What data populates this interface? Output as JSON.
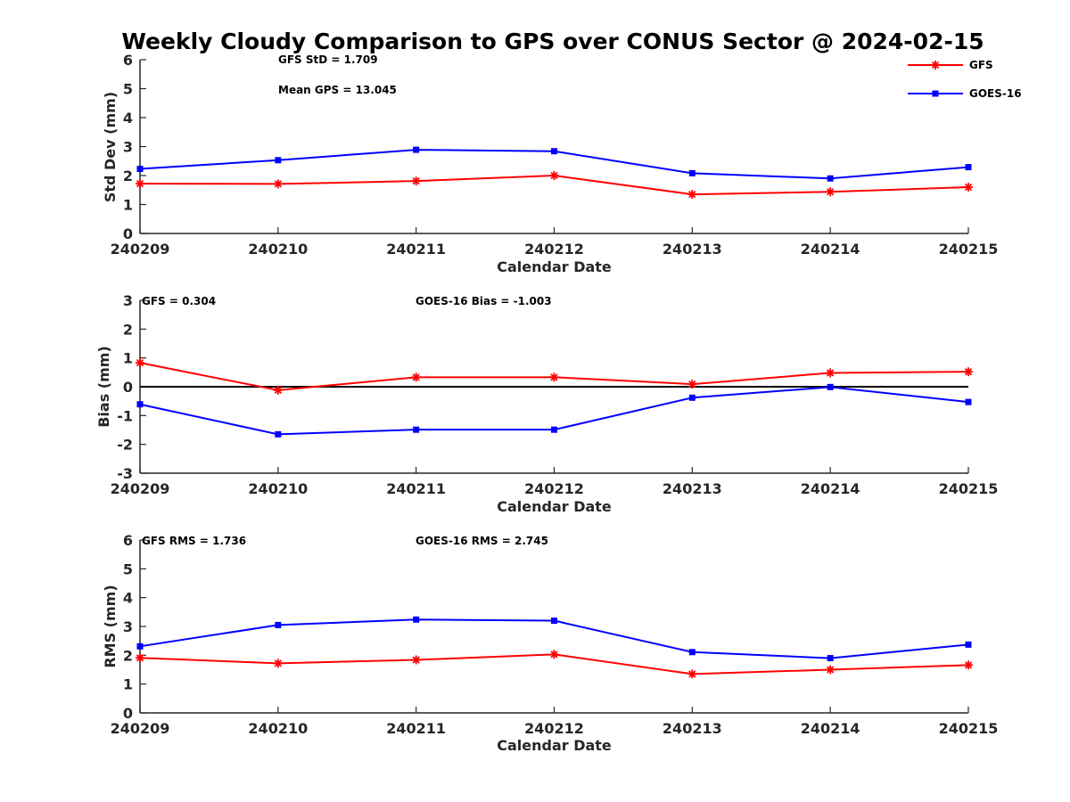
{
  "chart_data": [
    {
      "type": "line",
      "title": "Weekly Cloudy Comparison to GPS over CONUS Sector @ 2024-02-15",
      "xlabel": "Calendar Date",
      "ylabel": "Std Dev (mm)",
      "categories": [
        "240209",
        "240210",
        "240211",
        "240212",
        "240213",
        "240214",
        "240215"
      ],
      "ylim": [
        0,
        6
      ],
      "yticks": [
        "0",
        "1",
        "2",
        "3",
        "4",
        "5",
        "6"
      ],
      "annotations": [
        "GFS StD = 1.709",
        "Mean GPS = 13.045"
      ],
      "legend": {
        "placement": "top-right",
        "entries": [
          "GFS",
          "GOES-16"
        ]
      },
      "series": [
        {
          "name": "GFS",
          "color": "#ff0000",
          "marker": "asterisk",
          "values": [
            1.72,
            1.71,
            1.81,
            2.0,
            1.35,
            1.44,
            1.6
          ]
        },
        {
          "name": "GOES-16",
          "color": "#0000ff",
          "marker": "square",
          "values": [
            2.23,
            2.53,
            2.89,
            2.84,
            2.08,
            1.9,
            2.29
          ]
        }
      ]
    },
    {
      "type": "line",
      "xlabel": "Calendar Date",
      "ylabel": "Bias (mm)",
      "categories": [
        "240209",
        "240210",
        "240211",
        "240212",
        "240213",
        "240214",
        "240215"
      ],
      "ylim": [
        -3,
        3
      ],
      "yticks": [
        "-3",
        "-2",
        "-1",
        "0",
        "1",
        "2",
        "3"
      ],
      "zero_line": true,
      "annotations": [
        "GFS = 0.304",
        "GOES-16 Bias  = -1.003"
      ],
      "series": [
        {
          "name": "GFS",
          "color": "#ff0000",
          "marker": "asterisk",
          "values": [
            0.83,
            -0.12,
            0.33,
            0.33,
            0.09,
            0.48,
            0.52
          ]
        },
        {
          "name": "GOES-16",
          "color": "#0000ff",
          "marker": "square",
          "values": [
            -0.61,
            -1.65,
            -1.49,
            -1.49,
            -0.38,
            -0.01,
            -0.53
          ]
        }
      ]
    },
    {
      "type": "line",
      "xlabel": "Calendar Date",
      "ylabel": "RMS (mm)",
      "categories": [
        "240209",
        "240210",
        "240211",
        "240212",
        "240213",
        "240214",
        "240215"
      ],
      "ylim": [
        0,
        6
      ],
      "yticks": [
        "0",
        "1",
        "2",
        "3",
        "4",
        "5",
        "6"
      ],
      "annotations": [
        "GFS RMS = 1.736",
        "GOES-16 RMS = 2.745"
      ],
      "series": [
        {
          "name": "GFS",
          "color": "#ff0000",
          "marker": "asterisk",
          "values": [
            1.91,
            1.72,
            1.84,
            2.03,
            1.35,
            1.5,
            1.66
          ]
        },
        {
          "name": "GOES-16",
          "color": "#0000ff",
          "marker": "square",
          "values": [
            2.31,
            3.05,
            3.24,
            3.2,
            2.11,
            1.9,
            2.37
          ]
        }
      ]
    }
  ]
}
